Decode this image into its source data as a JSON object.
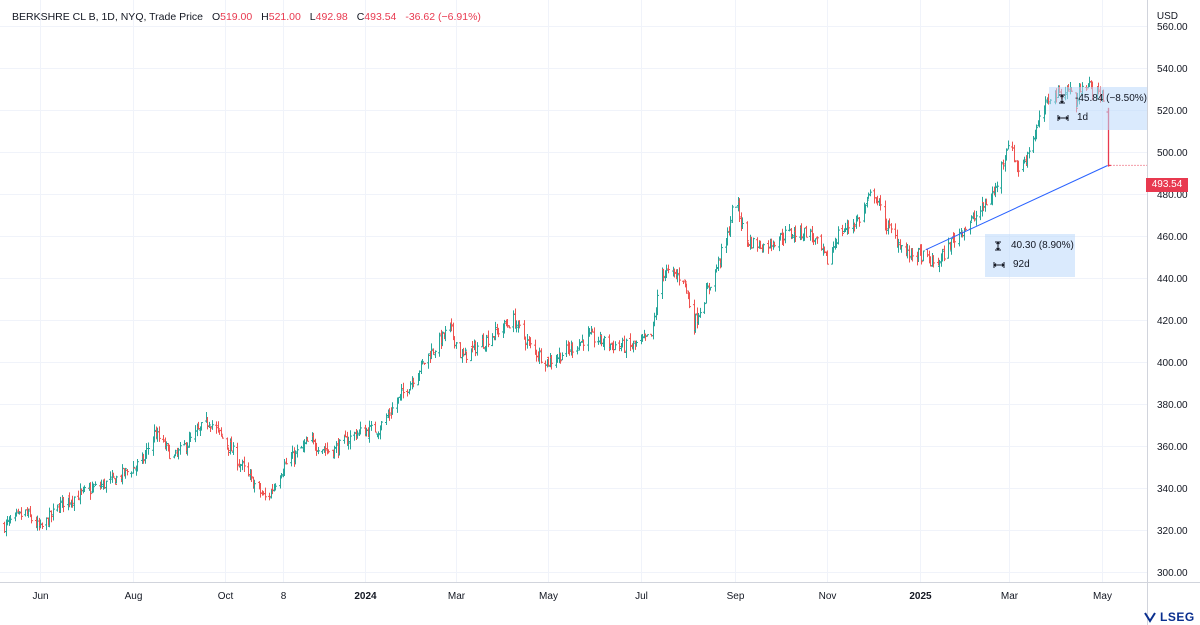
{
  "legend": {
    "symbol": "BERKSHRE CL B, 1D, NYQ, Trade Price",
    "open_label": "O",
    "open": "519.00",
    "high_label": "H",
    "high": "521.00",
    "low_label": "L",
    "low": "492.98",
    "close_label": "C",
    "close": "493.54",
    "change": "-36.62 (−6.91%)"
  },
  "currency": "USD",
  "last_price_tag": "493.54",
  "measure_1": {
    "delta": "-45.84 (−8.50%)",
    "span": "1d"
  },
  "measure_2": {
    "delta": "40.30 (8.90%)",
    "span": "92d"
  },
  "logo_text": "LSEG",
  "colors": {
    "up": "#26a69a",
    "down": "#ef5350",
    "last": "#e8394f",
    "trend": "#2962ff",
    "measure_bg": "#bbd9fb"
  },
  "chart_data": {
    "type": "ohlc",
    "y_ticks": [
      "560.00",
      "540.00",
      "520.00",
      "500.00",
      "480.00",
      "460.00",
      "440.00",
      "420.00",
      "400.00",
      "380.00",
      "360.00",
      "340.00",
      "320.00",
      "300.00"
    ],
    "ylim": [
      295,
      570
    ],
    "x_range": [
      "2023-05-08",
      "2025-05-31"
    ],
    "x_tick_labels": [
      {
        "date": "2023-06-01",
        "label": "Jun",
        "bold": false
      },
      {
        "date": "2023-08-01",
        "label": "Aug",
        "bold": false
      },
      {
        "date": "2023-10-01",
        "label": "Oct",
        "bold": false
      },
      {
        "date": "2023-11-08",
        "label": "8",
        "bold": false
      },
      {
        "date": "2024-01-01",
        "label": "2024",
        "bold": true
      },
      {
        "date": "2024-03-01",
        "label": "Mar",
        "bold": false
      },
      {
        "date": "2024-05-01",
        "label": "May",
        "bold": false
      },
      {
        "date": "2024-07-01",
        "label": "Jul",
        "bold": false
      },
      {
        "date": "2024-09-01",
        "label": "Sep",
        "bold": false
      },
      {
        "date": "2024-11-01",
        "label": "Nov",
        "bold": false
      },
      {
        "date": "2025-01-01",
        "label": "2025",
        "bold": true
      },
      {
        "date": "2025-03-01",
        "label": "Mar",
        "bold": false
      },
      {
        "date": "2025-05-01",
        "label": "May",
        "bold": false
      }
    ],
    "close_path": [
      [
        "2023-05-08",
        322
      ],
      [
        "2023-05-22",
        328
      ],
      [
        "2023-06-01",
        320
      ],
      [
        "2023-06-15",
        333
      ],
      [
        "2023-07-01",
        338
      ],
      [
        "2023-07-20",
        344
      ],
      [
        "2023-08-07",
        352
      ],
      [
        "2023-08-15",
        366
      ],
      [
        "2023-08-28",
        354
      ],
      [
        "2023-09-12",
        366
      ],
      [
        "2023-09-20",
        372
      ],
      [
        "2023-10-05",
        358
      ],
      [
        "2023-10-15",
        346
      ],
      [
        "2023-10-28",
        334
      ],
      [
        "2023-11-08",
        350
      ],
      [
        "2023-11-25",
        362
      ],
      [
        "2023-12-10",
        357
      ],
      [
        "2023-12-26",
        366
      ],
      [
        "2024-01-10",
        368
      ],
      [
        "2024-01-26",
        385
      ],
      [
        "2024-02-12",
        403
      ],
      [
        "2024-02-26",
        416
      ],
      [
        "2024-03-05",
        402
      ],
      [
        "2024-03-20",
        410
      ],
      [
        "2024-04-08",
        420
      ],
      [
        "2024-04-20",
        406
      ],
      [
        "2024-05-01",
        400
      ],
      [
        "2024-05-15",
        406
      ],
      [
        "2024-05-27",
        412
      ],
      [
        "2024-06-12",
        408
      ],
      [
        "2024-06-25",
        407
      ],
      [
        "2024-07-08",
        412
      ],
      [
        "2024-07-15",
        443
      ],
      [
        "2024-07-29",
        440
      ],
      [
        "2024-08-05",
        418
      ],
      [
        "2024-08-19",
        443
      ],
      [
        "2024-08-27",
        460
      ],
      [
        "2024-09-01",
        479
      ],
      [
        "2024-09-08",
        458
      ],
      [
        "2024-09-20",
        455
      ],
      [
        "2024-10-05",
        461
      ],
      [
        "2024-10-20",
        462
      ],
      [
        "2024-11-01",
        448
      ],
      [
        "2024-11-08",
        461
      ],
      [
        "2024-11-22",
        468
      ],
      [
        "2024-12-01",
        482
      ],
      [
        "2024-12-10",
        465
      ],
      [
        "2024-12-24",
        451
      ],
      [
        "2025-01-01",
        451
      ],
      [
        "2025-01-12",
        446
      ],
      [
        "2025-01-26",
        461
      ],
      [
        "2025-02-08",
        470
      ],
      [
        "2025-02-20",
        482
      ],
      [
        "2025-02-28",
        505
      ],
      [
        "2025-03-08",
        490
      ],
      [
        "2025-03-20",
        513
      ],
      [
        "2025-03-28",
        527
      ],
      [
        "2025-04-05",
        529
      ],
      [
        "2025-04-10",
        530
      ],
      [
        "2025-04-14",
        522
      ],
      [
        "2025-04-18",
        534
      ],
      [
        "2025-04-25",
        530
      ],
      [
        "2025-05-02",
        526
      ]
    ],
    "last_bar": {
      "date": "2025-05-05",
      "open": 519.0,
      "high": 521.0,
      "low": 492.98,
      "close": 493.54
    },
    "trendline": [
      [
        "2025-01-05",
        453.3
      ],
      [
        "2025-05-05",
        493.5
      ]
    ]
  }
}
